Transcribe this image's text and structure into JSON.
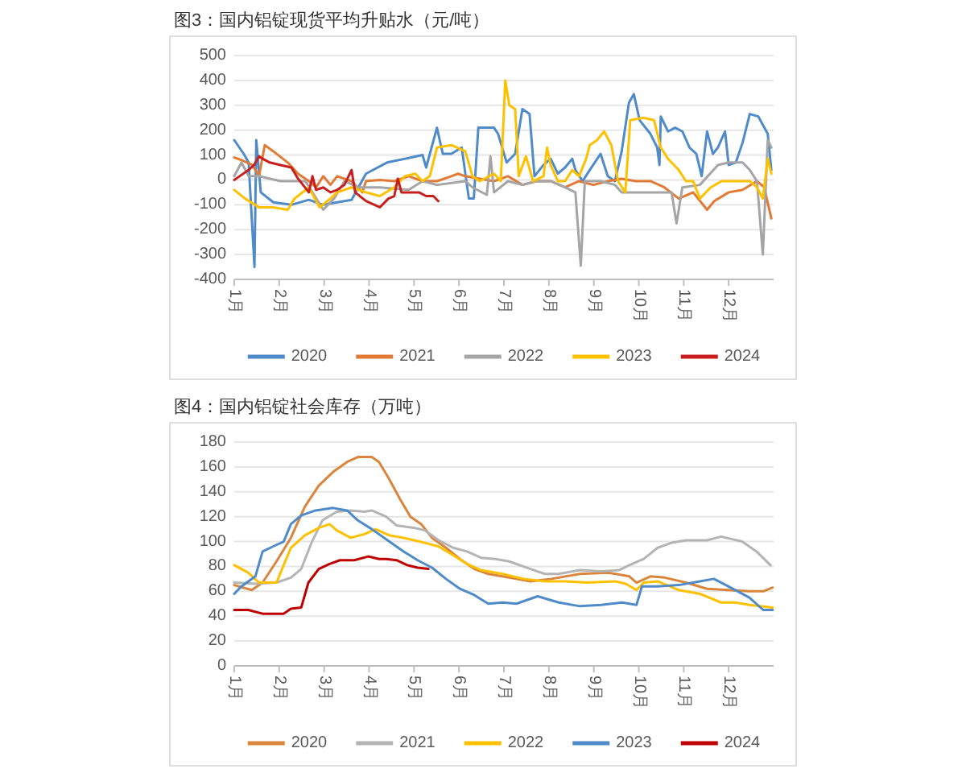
{
  "chart_data": [
    {
      "type": "line",
      "title": "图3：国内铝锭现货平均升贴水（元/吨）",
      "xlim": [
        1,
        13
      ],
      "xticks": [
        {
          "value": 1,
          "label": "1月"
        },
        {
          "value": 2,
          "label": "2月"
        },
        {
          "value": 3,
          "label": "3月"
        },
        {
          "value": 4,
          "label": "4月"
        },
        {
          "value": 5,
          "label": "5月"
        },
        {
          "value": 6,
          "label": "6月"
        },
        {
          "value": 7,
          "label": "7月"
        },
        {
          "value": 8,
          "label": "8月"
        },
        {
          "value": 9,
          "label": "9月"
        },
        {
          "value": 10,
          "label": "10月"
        },
        {
          "value": 11,
          "label": "11月"
        },
        {
          "value": 12,
          "label": "12月"
        }
      ],
      "ylim": [
        -400,
        500
      ],
      "yticks": [
        -400,
        -300,
        -200,
        -100,
        0,
        100,
        200,
        300,
        400,
        500
      ],
      "grid": "y",
      "legend": "bottom",
      "series": [
        {
          "name": "2020",
          "color": "#4f8bc9",
          "x": [
            1.0,
            1.21,
            1.32,
            1.45,
            1.49,
            1.59,
            1.87,
            2.27,
            2.66,
            2.98,
            3.29,
            3.61,
            3.93,
            4.4,
            5.19,
            5.27,
            5.51,
            5.64,
            5.83,
            6.06,
            6.22,
            6.33,
            6.43,
            6.78,
            6.87,
            7.06,
            7.25,
            7.41,
            7.57,
            7.68,
            7.88,
            8.04,
            8.2,
            8.36,
            8.52,
            8.59,
            8.75,
            8.91,
            9.15,
            9.31,
            9.47,
            9.62,
            9.78,
            9.89,
            10.02,
            10.26,
            10.41,
            10.46,
            10.49,
            10.65,
            10.81,
            10.97,
            11.13,
            11.28,
            11.4,
            11.52,
            11.65,
            11.76,
            11.92,
            12.0,
            12.16,
            12.31,
            12.47,
            12.66,
            12.87,
            12.95
          ],
          "values": [
            160,
            105,
            70,
            -350,
            160,
            -50,
            -90,
            -100,
            -80,
            -100,
            -90,
            -80,
            25,
            70,
            100,
            50,
            210,
            105,
            105,
            130,
            -75,
            -75,
            210,
            210,
            185,
            70,
            105,
            285,
            265,
            15,
            60,
            85,
            25,
            50,
            85,
            40,
            -5,
            40,
            105,
            15,
            -5,
            115,
            310,
            345,
            240,
            185,
            130,
            60,
            255,
            195,
            210,
            195,
            130,
            105,
            15,
            195,
            105,
            130,
            195,
            60,
            70,
            150,
            265,
            255,
            185,
            40
          ]
        },
        {
          "name": "2021",
          "color": "#e07a35",
          "x": [
            1.0,
            1.16,
            1.4,
            1.55,
            1.68,
            1.87,
            2.19,
            2.42,
            2.66,
            2.82,
            2.98,
            3.14,
            3.29,
            3.61,
            3.85,
            3.93,
            4.24,
            4.56,
            4.88,
            5.19,
            5.51,
            5.83,
            5.98,
            6.14,
            6.46,
            6.78,
            7.09,
            7.41,
            7.72,
            8.04,
            8.36,
            8.67,
            8.99,
            9.31,
            9.62,
            9.94,
            10.26,
            10.57,
            10.89,
            11.21,
            11.52,
            11.68,
            12.0,
            12.31,
            12.63,
            12.79,
            12.95
          ],
          "values": [
            90,
            80,
            60,
            15,
            140,
            115,
            70,
            25,
            -5,
            -30,
            15,
            -20,
            15,
            -5,
            -50,
            -5,
            0,
            -5,
            15,
            -5,
            -5,
            15,
            25,
            15,
            5,
            -5,
            15,
            -20,
            -5,
            -5,
            -30,
            -5,
            -20,
            -5,
            5,
            -5,
            -5,
            -30,
            -75,
            -50,
            -120,
            -85,
            -50,
            -40,
            -5,
            -30,
            -155
          ]
        },
        {
          "name": "2022",
          "color": "#a5a5a5",
          "x": [
            1.0,
            1.16,
            1.32,
            1.55,
            2.03,
            2.58,
            2.74,
            2.98,
            3.22,
            3.45,
            3.77,
            4.24,
            4.88,
            5.19,
            5.51,
            6.14,
            6.3,
            6.62,
            6.7,
            6.78,
            7.09,
            7.41,
            7.72,
            8.04,
            8.36,
            8.59,
            8.71,
            8.8,
            9.15,
            9.47,
            9.62,
            10.26,
            10.73,
            10.84,
            10.97,
            11.36,
            11.76,
            12.0,
            12.31,
            12.47,
            12.63,
            12.76,
            12.87,
            12.95
          ],
          "values": [
            15,
            70,
            15,
            15,
            -5,
            -5,
            -50,
            -120,
            -75,
            -5,
            -30,
            -30,
            -40,
            -5,
            -20,
            -5,
            -30,
            -60,
            95,
            -50,
            -5,
            -20,
            -5,
            -5,
            -30,
            -50,
            -345,
            -5,
            -5,
            -20,
            -50,
            -50,
            -50,
            -175,
            -30,
            -20,
            60,
            70,
            70,
            40,
            -5,
            -300,
            160,
            130
          ]
        },
        {
          "name": "2023",
          "color": "#ffc000",
          "x": [
            1.0,
            1.24,
            1.55,
            1.87,
            2.19,
            2.34,
            2.66,
            2.9,
            3.14,
            3.29,
            3.61,
            3.93,
            4.24,
            4.56,
            4.8,
            5.03,
            5.19,
            5.35,
            5.51,
            5.83,
            6.14,
            6.3,
            6.46,
            6.78,
            6.93,
            7.03,
            7.12,
            7.25,
            7.33,
            7.49,
            7.65,
            7.88,
            7.96,
            8.04,
            8.2,
            8.36,
            8.52,
            8.67,
            8.83,
            8.91,
            9.07,
            9.23,
            9.39,
            9.54,
            9.7,
            9.81,
            10.1,
            10.34,
            10.49,
            10.65,
            10.89,
            11.05,
            11.21,
            11.36,
            11.6,
            11.84,
            12.0,
            12.31,
            12.47,
            12.63,
            12.76,
            12.87,
            12.95
          ],
          "values": [
            -40,
            -75,
            -110,
            -110,
            -120,
            -75,
            -30,
            -110,
            -75,
            -50,
            -30,
            -50,
            -65,
            -30,
            15,
            25,
            -5,
            15,
            130,
            140,
            115,
            15,
            -5,
            25,
            -5,
            400,
            300,
            285,
            15,
            95,
            -5,
            15,
            130,
            60,
            -5,
            -5,
            40,
            15,
            85,
            140,
            160,
            195,
            140,
            -5,
            -50,
            240,
            250,
            240,
            130,
            85,
            40,
            -5,
            -5,
            -75,
            -30,
            -5,
            -5,
            -5,
            -5,
            -30,
            -75,
            85,
            25
          ]
        },
        {
          "name": "2024",
          "color": "#c81e1e",
          "x": [
            1.0,
            1.08,
            1.32,
            1.44,
            1.55,
            1.63,
            1.79,
            2.03,
            2.27,
            2.42,
            2.66,
            2.74,
            2.82,
            2.98,
            3.14,
            3.29,
            3.45,
            3.61,
            3.69,
            3.93,
            4.24,
            4.43,
            4.56,
            4.64,
            4.72,
            4.88,
            5.11,
            5.27,
            5.43,
            5.54
          ],
          "values": [
            0,
            10,
            40,
            60,
            95,
            85,
            70,
            60,
            50,
            5,
            -50,
            15,
            -40,
            -30,
            -50,
            -40,
            -20,
            40,
            -50,
            -85,
            -110,
            -75,
            -65,
            5,
            -50,
            -50,
            -50,
            -65,
            -65,
            -85
          ]
        }
      ]
    },
    {
      "type": "line",
      "title": "图4：国内铝锭社会库存（万吨）",
      "xlim": [
        1,
        13
      ],
      "xticks": [
        {
          "value": 1,
          "label": "1月"
        },
        {
          "value": 2,
          "label": "2月"
        },
        {
          "value": 3,
          "label": "3月"
        },
        {
          "value": 4,
          "label": "4月"
        },
        {
          "value": 5,
          "label": "5月"
        },
        {
          "value": 6,
          "label": "6月"
        },
        {
          "value": 7,
          "label": "7月"
        },
        {
          "value": 8,
          "label": "8月"
        },
        {
          "value": 9,
          "label": "9月"
        },
        {
          "value": 10,
          "label": "10月"
        },
        {
          "value": 11,
          "label": "11月"
        },
        {
          "value": 12,
          "label": "12月"
        }
      ],
      "ylim": [
        0,
        180
      ],
      "yticks": [
        0,
        20,
        40,
        60,
        80,
        100,
        120,
        140,
        160,
        180
      ],
      "grid": "y",
      "legend": "bottom",
      "series": [
        {
          "name": "2020",
          "color": "#d9853b",
          "x": [
            1.0,
            1.39,
            1.63,
            1.94,
            2.26,
            2.57,
            2.88,
            3.2,
            3.51,
            3.75,
            4.06,
            4.22,
            4.45,
            4.69,
            4.92,
            5.16,
            5.4,
            5.71,
            6.02,
            6.34,
            6.65,
            7.12,
            7.59,
            8.06,
            8.69,
            9.32,
            9.79,
            9.95,
            10.26,
            10.58,
            11.05,
            11.52,
            11.99,
            12.46,
            12.77,
            12.98
          ],
          "values": [
            65,
            61,
            67,
            84,
            103,
            128,
            145,
            156,
            164,
            168,
            168,
            164,
            150,
            134,
            120,
            114,
            103,
            95,
            86,
            78,
            74,
            71,
            68,
            70,
            74,
            75,
            72,
            67,
            72,
            71,
            67,
            62,
            61,
            60,
            60,
            63
          ]
        },
        {
          "name": "2021",
          "color": "#b4b4b4",
          "x": [
            1.0,
            1.47,
            1.94,
            2.26,
            2.49,
            2.73,
            2.96,
            3.28,
            3.59,
            3.9,
            4.06,
            4.38,
            4.61,
            5.0,
            5.24,
            5.55,
            5.87,
            6.18,
            6.49,
            6.81,
            7.12,
            7.59,
            7.91,
            8.22,
            8.69,
            9.16,
            9.56,
            9.79,
            10.11,
            10.42,
            10.73,
            11.05,
            11.52,
            11.83,
            12.3,
            12.62,
            12.93
          ],
          "values": [
            67,
            66,
            67,
            71,
            78,
            100,
            117,
            124,
            125,
            124,
            125,
            120,
            113,
            111,
            109,
            101,
            95,
            92,
            87,
            86,
            84,
            78,
            74,
            74,
            77,
            76,
            77,
            81,
            86,
            95,
            99,
            101,
            101,
            104,
            100,
            92,
            81
          ]
        },
        {
          "name": "2022",
          "color": "#ffc000",
          "x": [
            1.0,
            1.31,
            1.55,
            1.94,
            2.1,
            2.26,
            2.57,
            2.88,
            3.12,
            3.28,
            3.59,
            3.9,
            4.14,
            4.45,
            4.77,
            5.0,
            5.24,
            5.55,
            5.87,
            6.18,
            6.49,
            6.97,
            7.44,
            7.91,
            8.38,
            8.85,
            9.48,
            9.71,
            9.95,
            10.11,
            10.42,
            10.89,
            11.36,
            11.83,
            12.15,
            12.46,
            12.98
          ],
          "values": [
            81,
            75,
            67,
            67,
            81,
            95,
            105,
            111,
            114,
            109,
            103,
            106,
            110,
            105,
            103,
            101,
            99,
            96,
            89,
            82,
            77,
            74,
            70,
            68,
            68,
            67,
            68,
            66,
            61,
            67,
            68,
            61,
            58,
            51,
            51,
            49,
            47
          ]
        },
        {
          "name": "2023",
          "color": "#4f8bc9",
          "x": [
            1.0,
            1.16,
            1.47,
            1.63,
            1.86,
            2.1,
            2.26,
            2.49,
            2.81,
            3.2,
            3.51,
            3.75,
            4.06,
            4.45,
            4.77,
            5.08,
            5.4,
            5.71,
            6.02,
            6.34,
            6.65,
            6.97,
            7.28,
            7.75,
            8.22,
            8.69,
            9.16,
            9.63,
            9.95,
            10.07,
            10.42,
            10.89,
            11.36,
            11.67,
            11.99,
            12.46,
            12.77,
            12.98
          ],
          "values": [
            58,
            64,
            72,
            92,
            96,
            100,
            114,
            121,
            125,
            127,
            125,
            117,
            110,
            100,
            92,
            85,
            79,
            70,
            62,
            57,
            50,
            51,
            50,
            56,
            51,
            48,
            49,
            51,
            49,
            64,
            64,
            65,
            68,
            70,
            64,
            55,
            45,
            45
          ]
        },
        {
          "name": "2024",
          "color": "#c00000",
          "x": [
            1.0,
            1.31,
            1.63,
            2.1,
            2.26,
            2.49,
            2.65,
            2.88,
            3.12,
            3.35,
            3.67,
            3.98,
            4.22,
            4.38,
            4.61,
            4.85,
            5.08,
            5.32
          ],
          "values": [
            45,
            45,
            42,
            42,
            46,
            47,
            67,
            78,
            82,
            85,
            85,
            88,
            86,
            86,
            85,
            81,
            79,
            78
          ]
        }
      ]
    }
  ]
}
